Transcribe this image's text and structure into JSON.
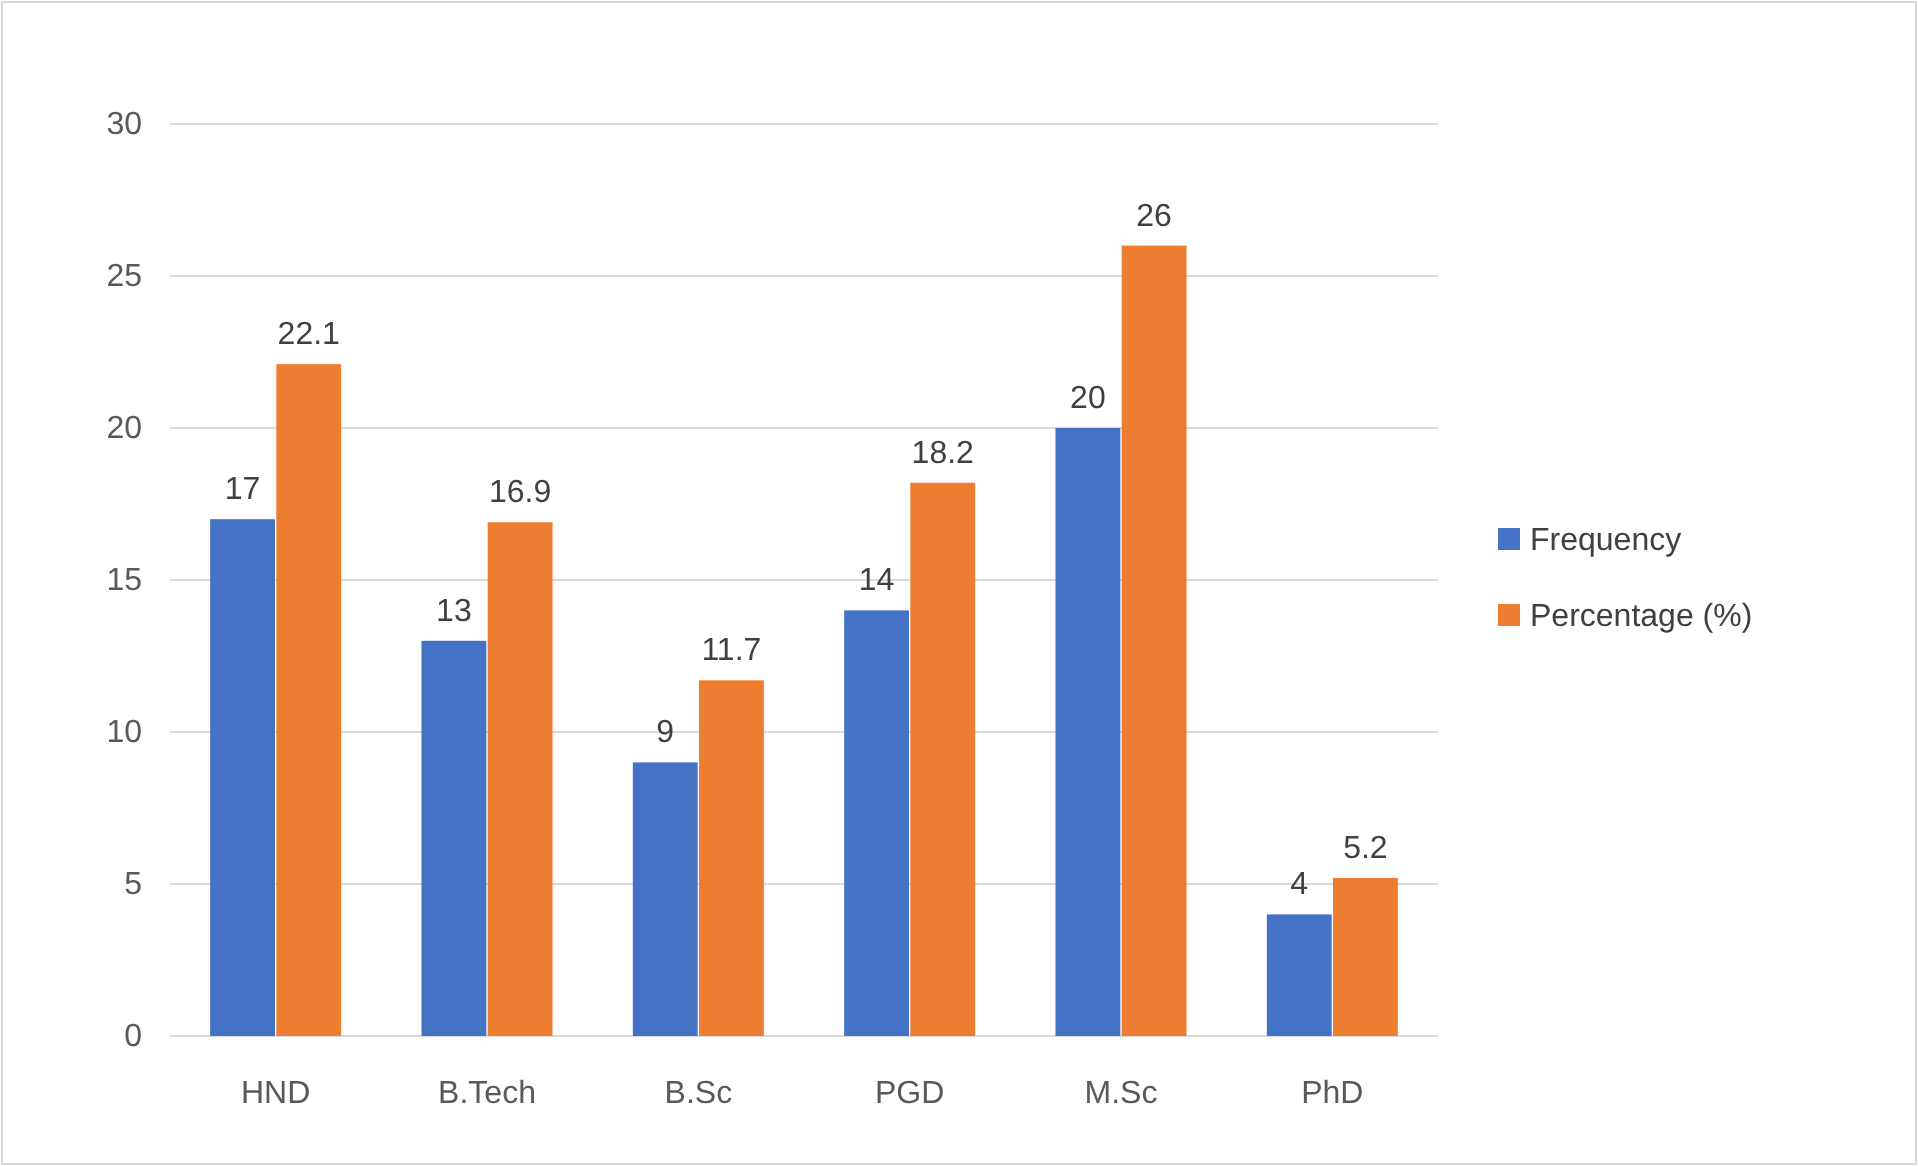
{
  "chart_data": {
    "type": "bar",
    "categories": [
      "HND",
      "B.Tech",
      "B.Sc",
      "PGD",
      "M.Sc",
      "PhD"
    ],
    "series": [
      {
        "name": "Frequency",
        "color": "#4472c4",
        "values": [
          17,
          13,
          9,
          14,
          20,
          4
        ]
      },
      {
        "name": "Percentage (%)",
        "color": "#ed7d31",
        "values": [
          22.1,
          16.9,
          11.7,
          18.2,
          26,
          5.2
        ]
      }
    ],
    "ylim": [
      0,
      30
    ],
    "yticks": [
      0,
      5,
      10,
      15,
      20,
      25,
      30
    ],
    "grid": "y",
    "legend": "right",
    "data_labels": true
  }
}
